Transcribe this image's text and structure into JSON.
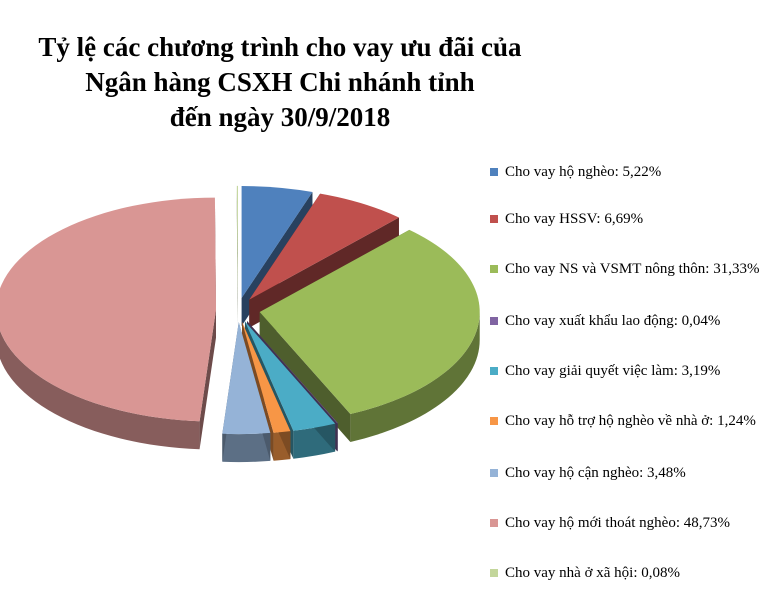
{
  "chart_data": {
    "type": "pie",
    "title": [
      "Tỷ lệ các chương trình cho vay ưu đãi của",
      "Ngân hàng CSXH Chi nhánh tỉnh",
      "đến ngày 30/9/2018"
    ],
    "legend_position": "right",
    "slices": [
      {
        "label": "Cho vay hộ nghèo: 5,22%",
        "value": 5.22,
        "color": "#4f81bd",
        "exploded": true
      },
      {
        "label": "Cho vay HSSV: 6,69%",
        "value": 6.69,
        "color": "#c0504d",
        "exploded": true
      },
      {
        "label": "Cho vay NS và VSMT nông thôn: 31,33%",
        "value": 31.33,
        "color": "#9bbb59",
        "exploded": true
      },
      {
        "label": "Cho vay xuất khẩu lao động: 0,04%",
        "value": 0.04,
        "color": "#8064a2",
        "exploded": true
      },
      {
        "label": "Cho vay giải quyết việc làm: 3,19%",
        "value": 3.19,
        "color": "#4bacc6",
        "exploded": true
      },
      {
        "label": "Cho vay hỗ trợ hộ nghèo về nhà ở: 1,24%",
        "value": 1.24,
        "color": "#f79646",
        "exploded": true
      },
      {
        "label": "Cho vay hộ cận nghèo: 3,48%",
        "value": 3.48,
        "color": "#95b3d7",
        "exploded": true
      },
      {
        "label": "Cho vay hộ mới thoát nghèo: 48,73%",
        "value": 48.73,
        "color": "#d99694",
        "exploded": true
      },
      {
        "label": "Cho vay nhà ở xã hội: 0,08%",
        "value": 0.08,
        "color": "#c3d69b",
        "exploded": true
      }
    ]
  }
}
